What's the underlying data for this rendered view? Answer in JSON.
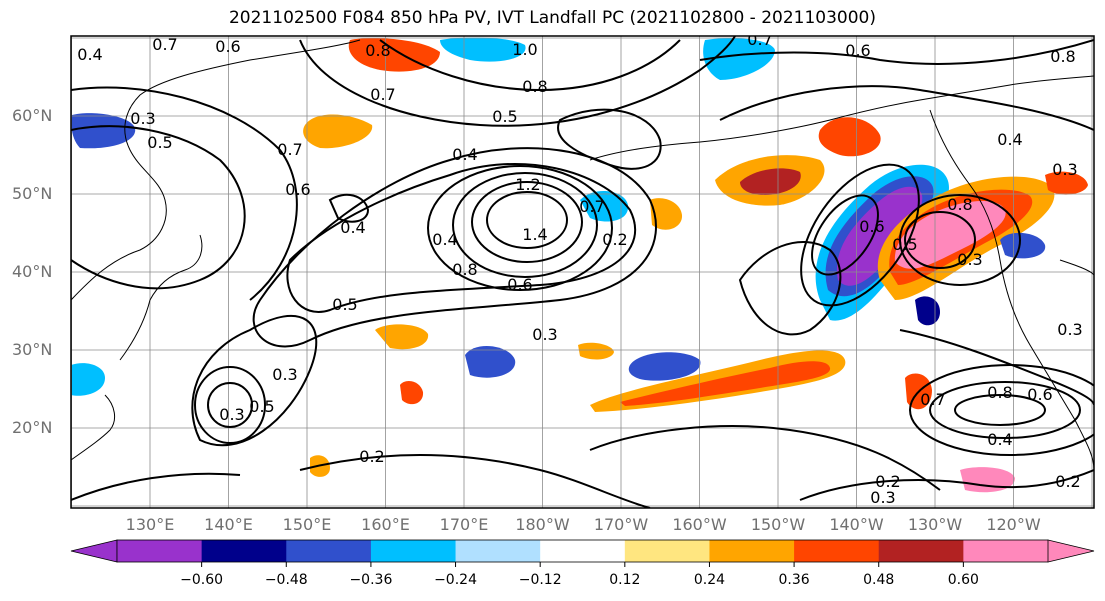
{
  "title": "2021102500 F084 850 hPa PV, IVT Landfall PC (2021102800 - 2021103000)",
  "latitudes": [
    {
      "label": "60°N",
      "lat": 60
    },
    {
      "label": "50°N",
      "lat": 50
    },
    {
      "label": "40°N",
      "lat": 40
    },
    {
      "label": "30°N",
      "lat": 30
    },
    {
      "label": "20°N",
      "lat": 20
    }
  ],
  "longitudes": [
    {
      "label": "130°E",
      "lon": 130
    },
    {
      "label": "140°E",
      "lon": 140
    },
    {
      "label": "150°E",
      "lon": 150
    },
    {
      "label": "160°E",
      "lon": 160
    },
    {
      "label": "170°E",
      "lon": 170
    },
    {
      "label": "180°W",
      "lon": 180
    },
    {
      "label": "170°W",
      "lon": 190
    },
    {
      "label": "160°W",
      "lon": 200
    },
    {
      "label": "150°W",
      "lon": 210
    },
    {
      "label": "140°W",
      "lon": 220
    },
    {
      "label": "130°W",
      "lon": 230
    },
    {
      "label": "120°W",
      "lon": 240
    }
  ],
  "colorbar": {
    "colors": [
      "#9932cc",
      "#00008b",
      "#3050cc",
      "#00bfff",
      "#b0e0ff",
      "#ffffff",
      "#ffe680",
      "#ffa500",
      "#ff4500",
      "#b22222",
      "#ff88bb"
    ],
    "tick_labels": [
      "−0.60",
      "−0.48",
      "−0.36",
      "−0.24",
      "−0.12",
      "0.12",
      "0.24",
      "0.36",
      "0.48",
      "0.60"
    ]
  },
  "contour_labels": [
    "0.7",
    "0.6",
    "0.4",
    "0.8",
    "1.0",
    "0.8",
    "0.7",
    "0.6",
    "0.8",
    "0.7",
    "0.3",
    "0.5",
    "0.4",
    "0.5",
    "0.7",
    "0.6",
    "0.4",
    "1.2",
    "1.4",
    "0.7",
    "0.2",
    "0.4",
    "0.8",
    "0.6",
    "0.5",
    "0.3",
    "0.3",
    "0.3",
    "0.5",
    "0.6",
    "0.5",
    "0.8",
    "0.3",
    "0.7",
    "0.4",
    "0.3",
    "0.8",
    "0.6",
    "0.4",
    "0.3",
    "0.2",
    "0.2",
    "0.3",
    "0.2"
  ]
}
